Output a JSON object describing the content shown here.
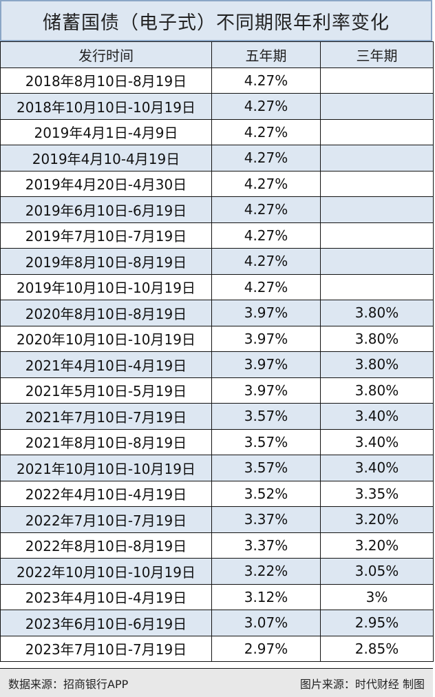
{
  "title": "储蓄国债（电子式）不同期限年利率变化",
  "table": {
    "header": [
      "发行时间",
      "五年期",
      "三年期"
    ],
    "rows": [
      [
        "2018年8月10日-8月19日",
        "4.27%",
        null
      ],
      [
        "2018年10月10日-10月19日",
        "4.27%",
        null
      ],
      [
        "2019年4月1日-4月9日",
        "4.27%",
        null
      ],
      [
        "2019年4月10-4月19日",
        "4.27%",
        null
      ],
      [
        "2019年4月20日-4月30日",
        "4.27%",
        null
      ],
      [
        "2019年6月10日-6月19日",
        "4.27%",
        null
      ],
      [
        "2019年7月10日-7月19日",
        "4.27%",
        null
      ],
      [
        "2019年8月10日-8月19日",
        "4.27%",
        null
      ],
      [
        "2019年10月10日-10月19日",
        "4.27%",
        null
      ],
      [
        "2020年8月10日-8月19日",
        "3.97%",
        "3.80%"
      ],
      [
        "2020年10月10日-10月19日",
        "3.97%",
        "3.80%"
      ],
      [
        "2021年4月10日-4月19日",
        "3.97%",
        "3.80%"
      ],
      [
        "2021年5月10日-5月19日",
        "3.97%",
        "3.80%"
      ],
      [
        "2021年7月10日-7月19日",
        "3.57%",
        "3.40%"
      ],
      [
        "2021年8月10日-8月19日",
        "3.57%",
        "3.40%"
      ],
      [
        "2021年10月10日-10月19日",
        "3.57%",
        "3.40%"
      ],
      [
        "2022年4月10日-4月19日",
        "3.52%",
        "3.35%"
      ],
      [
        "2022年7月10日-7月19日",
        "3.37%",
        "3.20%"
      ],
      [
        "2022年8月10日-8月19日",
        "3.37%",
        "3.20%"
      ],
      [
        "2022年10月10日-10月19日",
        "3.22%",
        "3.05%"
      ],
      [
        "2023年4月10日-4月19日",
        "3.12%",
        "3%"
      ],
      [
        "2023年6月10日-6月19日",
        "3.07%",
        "2.95%"
      ],
      [
        "2023年7月10日-7月19日",
        "2.97%",
        "2.85%"
      ]
    ]
  },
  "footer": {
    "left": "数据来源：招商银行APP",
    "right": "图片来源：时代财经 制图"
  }
}
